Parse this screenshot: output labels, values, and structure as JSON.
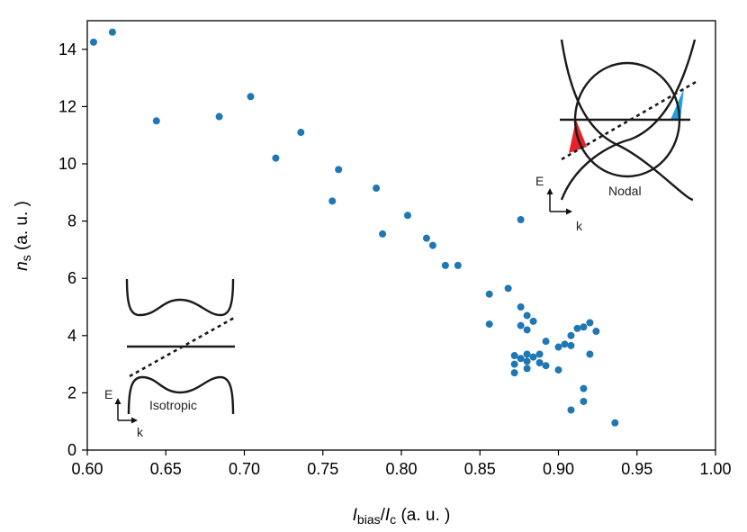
{
  "chart_data": {
    "type": "scatter",
    "xlabel": {
      "I": "I",
      "bias": "bias",
      "slash": "/",
      "I2": "I",
      "c": "c",
      "unit": " (a. u. )"
    },
    "ylabel": {
      "n": "n",
      "s": "s",
      "unit": " (a. u. )"
    },
    "xlim": [
      0.6,
      1.0
    ],
    "ylim": [
      0,
      15
    ],
    "x_ticks": [
      "0.60",
      "0.65",
      "0.70",
      "0.75",
      "0.80",
      "0.85",
      "0.90",
      "0.95",
      "1.00"
    ],
    "y_ticks": [
      "0",
      "2",
      "4",
      "6",
      "8",
      "10",
      "12",
      "14"
    ],
    "grid": false,
    "marker_color": "#1f77b4",
    "points": [
      {
        "x": 0.604,
        "y": 14.25
      },
      {
        "x": 0.616,
        "y": 14.6
      },
      {
        "x": 0.644,
        "y": 11.5
      },
      {
        "x": 0.684,
        "y": 11.65
      },
      {
        "x": 0.704,
        "y": 12.35
      },
      {
        "x": 0.72,
        "y": 10.2
      },
      {
        "x": 0.736,
        "y": 11.1
      },
      {
        "x": 0.756,
        "y": 8.7
      },
      {
        "x": 0.76,
        "y": 9.8
      },
      {
        "x": 0.784,
        "y": 9.15
      },
      {
        "x": 0.788,
        "y": 7.55
      },
      {
        "x": 0.804,
        "y": 8.2
      },
      {
        "x": 0.816,
        "y": 7.4
      },
      {
        "x": 0.82,
        "y": 7.15
      },
      {
        "x": 0.828,
        "y": 6.45
      },
      {
        "x": 0.836,
        "y": 6.45
      },
      {
        "x": 0.856,
        "y": 5.45
      },
      {
        "x": 0.856,
        "y": 4.4
      },
      {
        "x": 0.868,
        "y": 5.65
      },
      {
        "x": 0.876,
        "y": 8.05
      },
      {
        "x": 0.876,
        "y": 5.0
      },
      {
        "x": 0.876,
        "y": 4.35
      },
      {
        "x": 0.88,
        "y": 4.7
      },
      {
        "x": 0.88,
        "y": 4.2
      },
      {
        "x": 0.884,
        "y": 4.5
      },
      {
        "x": 0.872,
        "y": 3.3
      },
      {
        "x": 0.872,
        "y": 3.0
      },
      {
        "x": 0.872,
        "y": 2.7
      },
      {
        "x": 0.876,
        "y": 3.2
      },
      {
        "x": 0.88,
        "y": 3.35
      },
      {
        "x": 0.88,
        "y": 3.1
      },
      {
        "x": 0.88,
        "y": 2.85
      },
      {
        "x": 0.884,
        "y": 3.25
      },
      {
        "x": 0.888,
        "y": 3.35
      },
      {
        "x": 0.888,
        "y": 3.05
      },
      {
        "x": 0.892,
        "y": 3.8
      },
      {
        "x": 0.892,
        "y": 2.95
      },
      {
        "x": 0.9,
        "y": 3.6
      },
      {
        "x": 0.9,
        "y": 2.8
      },
      {
        "x": 0.904,
        "y": 3.7
      },
      {
        "x": 0.908,
        "y": 4.0
      },
      {
        "x": 0.908,
        "y": 3.65
      },
      {
        "x": 0.908,
        "y": 1.4
      },
      {
        "x": 0.912,
        "y": 4.25
      },
      {
        "x": 0.916,
        "y": 4.3
      },
      {
        "x": 0.916,
        "y": 2.15
      },
      {
        "x": 0.916,
        "y": 1.7
      },
      {
        "x": 0.92,
        "y": 4.45
      },
      {
        "x": 0.92,
        "y": 3.35
      },
      {
        "x": 0.924,
        "y": 4.15
      },
      {
        "x": 0.936,
        "y": 0.95
      }
    ],
    "annotations": {
      "isotropic_label": "Isotropic",
      "nodal_label": "Nodal",
      "energy_axis": "E",
      "momentum_axis": "k",
      "nodal_fill_left": "#e8222a",
      "nodal_fill_right": "#1ea0e0"
    }
  }
}
